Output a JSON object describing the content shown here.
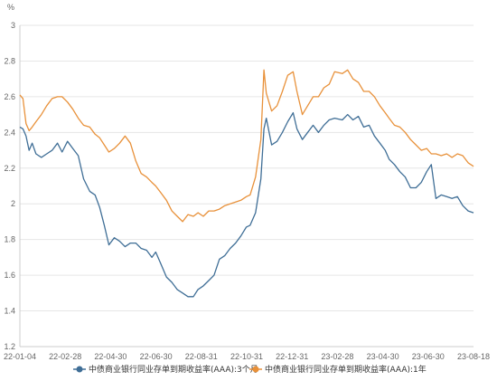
{
  "chart_data": {
    "type": "line",
    "ylabel": "%",
    "ylim": [
      1.2,
      3.0
    ],
    "y_ticks": [
      "1.2",
      "1.4",
      "1.6",
      "1.8",
      "2",
      "2.2",
      "2.4",
      "2.6",
      "2.8",
      "3"
    ],
    "x_tick_labels": [
      "22-01-04",
      "22-02-28",
      "22-04-30",
      "22-06-30",
      "22-08-31",
      "22-10-31",
      "22-12-31",
      "23-02-28",
      "23-04-30",
      "23-06-30",
      "23-08-18"
    ],
    "x_range": [
      "2022-01-04",
      "2023-08-18"
    ],
    "grid": "horizontal",
    "legend_position": "bottom",
    "series": [
      {
        "name": "中债商业银行同业存单到期收益率(AAA):3个月",
        "color": "#3f6e96",
        "points": [
          [
            "2022-01-04",
            2.43
          ],
          [
            "2022-01-08",
            2.42
          ],
          [
            "2022-01-12",
            2.38
          ],
          [
            "2022-01-16",
            2.3
          ],
          [
            "2022-01-20",
            2.34
          ],
          [
            "2022-01-25",
            2.28
          ],
          [
            "2022-02-01",
            2.26
          ],
          [
            "2022-02-08",
            2.28
          ],
          [
            "2022-02-15",
            2.3
          ],
          [
            "2022-02-22",
            2.34
          ],
          [
            "2022-02-28",
            2.29
          ],
          [
            "2022-03-07",
            2.35
          ],
          [
            "2022-03-14",
            2.31
          ],
          [
            "2022-03-21",
            2.27
          ],
          [
            "2022-03-28",
            2.14
          ],
          [
            "2022-04-05",
            2.07
          ],
          [
            "2022-04-12",
            2.05
          ],
          [
            "2022-04-18",
            1.98
          ],
          [
            "2022-04-24",
            1.88
          ],
          [
            "2022-04-30",
            1.77
          ],
          [
            "2022-05-07",
            1.81
          ],
          [
            "2022-05-14",
            1.79
          ],
          [
            "2022-05-21",
            1.76
          ],
          [
            "2022-05-28",
            1.78
          ],
          [
            "2022-06-04",
            1.78
          ],
          [
            "2022-06-11",
            1.75
          ],
          [
            "2022-06-18",
            1.74
          ],
          [
            "2022-06-25",
            1.7
          ],
          [
            "2022-06-30",
            1.73
          ],
          [
            "2022-07-07",
            1.66
          ],
          [
            "2022-07-14",
            1.59
          ],
          [
            "2022-07-21",
            1.56
          ],
          [
            "2022-07-28",
            1.52
          ],
          [
            "2022-08-04",
            1.5
          ],
          [
            "2022-08-11",
            1.48
          ],
          [
            "2022-08-18",
            1.48
          ],
          [
            "2022-08-24",
            1.52
          ],
          [
            "2022-08-31",
            1.54
          ],
          [
            "2022-09-07",
            1.57
          ],
          [
            "2022-09-14",
            1.6
          ],
          [
            "2022-09-21",
            1.69
          ],
          [
            "2022-09-28",
            1.71
          ],
          [
            "2022-10-05",
            1.75
          ],
          [
            "2022-10-12",
            1.78
          ],
          [
            "2022-10-19",
            1.82
          ],
          [
            "2022-10-26",
            1.87
          ],
          [
            "2022-10-31",
            1.88
          ],
          [
            "2022-11-07",
            1.95
          ],
          [
            "2022-11-14",
            2.14
          ],
          [
            "2022-11-18",
            2.42
          ],
          [
            "2022-11-21",
            2.48
          ],
          [
            "2022-11-28",
            2.33
          ],
          [
            "2022-12-05",
            2.35
          ],
          [
            "2022-12-12",
            2.4
          ],
          [
            "2022-12-19",
            2.46
          ],
          [
            "2022-12-26",
            2.51
          ],
          [
            "2022-12-31",
            2.42
          ],
          [
            "2023-01-07",
            2.36
          ],
          [
            "2023-01-14",
            2.4
          ],
          [
            "2023-01-21",
            2.44
          ],
          [
            "2023-01-28",
            2.4
          ],
          [
            "2023-02-04",
            2.44
          ],
          [
            "2023-02-11",
            2.47
          ],
          [
            "2023-02-18",
            2.48
          ],
          [
            "2023-02-28",
            2.47
          ],
          [
            "2023-03-07",
            2.5
          ],
          [
            "2023-03-14",
            2.47
          ],
          [
            "2023-03-21",
            2.49
          ],
          [
            "2023-03-28",
            2.43
          ],
          [
            "2023-04-04",
            2.44
          ],
          [
            "2023-04-11",
            2.38
          ],
          [
            "2023-04-18",
            2.34
          ],
          [
            "2023-04-25",
            2.3
          ],
          [
            "2023-04-30",
            2.25
          ],
          [
            "2023-05-07",
            2.22
          ],
          [
            "2023-05-14",
            2.18
          ],
          [
            "2023-05-21",
            2.15
          ],
          [
            "2023-05-28",
            2.09
          ],
          [
            "2023-06-04",
            2.09
          ],
          [
            "2023-06-11",
            2.12
          ],
          [
            "2023-06-18",
            2.18
          ],
          [
            "2023-06-24",
            2.22
          ],
          [
            "2023-06-30",
            2.03
          ],
          [
            "2023-07-07",
            2.05
          ],
          [
            "2023-07-14",
            2.04
          ],
          [
            "2023-07-21",
            2.03
          ],
          [
            "2023-07-28",
            2.04
          ],
          [
            "2023-08-04",
            1.99
          ],
          [
            "2023-08-11",
            1.96
          ],
          [
            "2023-08-18",
            1.95
          ]
        ]
      },
      {
        "name": "中债商业银行同业存单到期收益率(AAA):1年",
        "color": "#e8913a",
        "points": [
          [
            "2022-01-04",
            2.61
          ],
          [
            "2022-01-08",
            2.59
          ],
          [
            "2022-01-12",
            2.45
          ],
          [
            "2022-01-16",
            2.41
          ],
          [
            "2022-01-20",
            2.43
          ],
          [
            "2022-01-25",
            2.46
          ],
          [
            "2022-02-01",
            2.5
          ],
          [
            "2022-02-08",
            2.55
          ],
          [
            "2022-02-15",
            2.59
          ],
          [
            "2022-02-22",
            2.6
          ],
          [
            "2022-02-28",
            2.6
          ],
          [
            "2022-03-07",
            2.57
          ],
          [
            "2022-03-14",
            2.53
          ],
          [
            "2022-03-21",
            2.48
          ],
          [
            "2022-03-28",
            2.44
          ],
          [
            "2022-04-05",
            2.43
          ],
          [
            "2022-04-12",
            2.39
          ],
          [
            "2022-04-18",
            2.37
          ],
          [
            "2022-04-24",
            2.33
          ],
          [
            "2022-04-30",
            2.29
          ],
          [
            "2022-05-07",
            2.31
          ],
          [
            "2022-05-14",
            2.34
          ],
          [
            "2022-05-21",
            2.38
          ],
          [
            "2022-05-28",
            2.34
          ],
          [
            "2022-06-04",
            2.24
          ],
          [
            "2022-06-11",
            2.17
          ],
          [
            "2022-06-18",
            2.15
          ],
          [
            "2022-06-25",
            2.12
          ],
          [
            "2022-06-30",
            2.1
          ],
          [
            "2022-07-07",
            2.06
          ],
          [
            "2022-07-14",
            2.02
          ],
          [
            "2022-07-21",
            1.96
          ],
          [
            "2022-07-28",
            1.93
          ],
          [
            "2022-08-04",
            1.9
          ],
          [
            "2022-08-11",
            1.94
          ],
          [
            "2022-08-18",
            1.93
          ],
          [
            "2022-08-24",
            1.95
          ],
          [
            "2022-08-31",
            1.93
          ],
          [
            "2022-09-07",
            1.96
          ],
          [
            "2022-09-14",
            1.96
          ],
          [
            "2022-09-21",
            1.97
          ],
          [
            "2022-09-28",
            1.99
          ],
          [
            "2022-10-05",
            2.0
          ],
          [
            "2022-10-12",
            2.01
          ],
          [
            "2022-10-19",
            2.02
          ],
          [
            "2022-10-26",
            2.04
          ],
          [
            "2022-10-31",
            2.05
          ],
          [
            "2022-11-07",
            2.15
          ],
          [
            "2022-11-14",
            2.36
          ],
          [
            "2022-11-18",
            2.75
          ],
          [
            "2022-11-21",
            2.62
          ],
          [
            "2022-11-28",
            2.52
          ],
          [
            "2022-12-05",
            2.55
          ],
          [
            "2022-12-12",
            2.63
          ],
          [
            "2022-12-19",
            2.72
          ],
          [
            "2022-12-26",
            2.74
          ],
          [
            "2022-12-31",
            2.63
          ],
          [
            "2023-01-07",
            2.5
          ],
          [
            "2023-01-14",
            2.55
          ],
          [
            "2023-01-21",
            2.6
          ],
          [
            "2023-01-28",
            2.6
          ],
          [
            "2023-02-04",
            2.65
          ],
          [
            "2023-02-11",
            2.67
          ],
          [
            "2023-02-18",
            2.74
          ],
          [
            "2023-02-28",
            2.73
          ],
          [
            "2023-03-07",
            2.75
          ],
          [
            "2023-03-14",
            2.7
          ],
          [
            "2023-03-21",
            2.68
          ],
          [
            "2023-03-28",
            2.63
          ],
          [
            "2023-04-04",
            2.63
          ],
          [
            "2023-04-11",
            2.6
          ],
          [
            "2023-04-18",
            2.55
          ],
          [
            "2023-04-25",
            2.51
          ],
          [
            "2023-04-30",
            2.48
          ],
          [
            "2023-05-07",
            2.44
          ],
          [
            "2023-05-14",
            2.43
          ],
          [
            "2023-05-21",
            2.4
          ],
          [
            "2023-05-28",
            2.36
          ],
          [
            "2023-06-04",
            2.33
          ],
          [
            "2023-06-11",
            2.3
          ],
          [
            "2023-06-18",
            2.31
          ],
          [
            "2023-06-24",
            2.28
          ],
          [
            "2023-06-30",
            2.28
          ],
          [
            "2023-07-07",
            2.27
          ],
          [
            "2023-07-14",
            2.28
          ],
          [
            "2023-07-21",
            2.26
          ],
          [
            "2023-07-28",
            2.28
          ],
          [
            "2023-08-04",
            2.27
          ],
          [
            "2023-08-11",
            2.23
          ],
          [
            "2023-08-18",
            2.21
          ]
        ]
      }
    ]
  }
}
